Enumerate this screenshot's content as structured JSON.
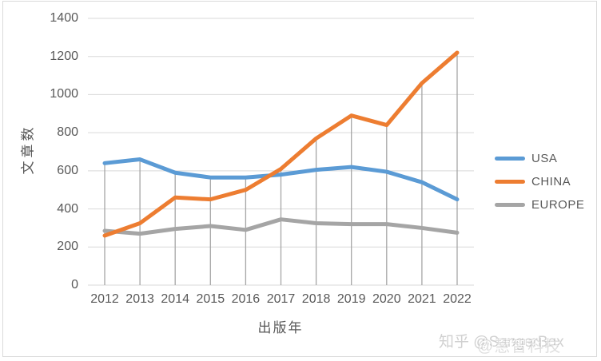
{
  "chart_data": {
    "type": "line",
    "title": "",
    "xlabel": "出版年",
    "ylabel": "文章数",
    "categories": [
      "2012",
      "2013",
      "2014",
      "2015",
      "2016",
      "2017",
      "2018",
      "2019",
      "2020",
      "2021",
      "2022"
    ],
    "yticks": [
      0,
      200,
      400,
      600,
      800,
      1000,
      1200,
      1400
    ],
    "ylim": [
      0,
      1400
    ],
    "grid": {
      "horizontal_gridlines": true,
      "vertical_drop_lines": true
    },
    "legend_position": "right",
    "series": [
      {
        "name": "USA",
        "color": "#5B9BD5",
        "values": [
          640,
          660,
          590,
          565,
          565,
          580,
          605,
          620,
          595,
          540,
          450
        ]
      },
      {
        "name": "CHINA",
        "color": "#ED7D31",
        "values": [
          260,
          325,
          460,
          450,
          500,
          610,
          770,
          890,
          840,
          1060,
          1220
        ]
      },
      {
        "name": "EUROPE",
        "color": "#A5A5A5",
        "values": [
          285,
          270,
          295,
          310,
          290,
          345,
          325,
          320,
          320,
          300,
          275
        ]
      }
    ]
  },
  "colors": {
    "gridline": "#D9D9D9",
    "drop_line": "#A6A6A6",
    "axis_text": "#595959",
    "frame_border": "#DADADA"
  },
  "watermark": {
    "primary": "知乎 @SangerBox",
    "secondary": "@慧智科技"
  }
}
